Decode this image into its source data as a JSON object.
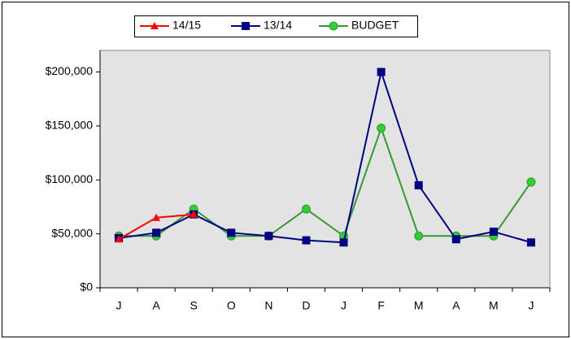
{
  "chart_data": {
    "type": "line",
    "categories": [
      "J",
      "A",
      "S",
      "O",
      "N",
      "D",
      "J",
      "F",
      "M",
      "A",
      "M",
      "J"
    ],
    "series": [
      {
        "name": "14/15",
        "color": "#ff0000",
        "marker": "triangle",
        "values": [
          45000,
          65000,
          68000,
          null,
          null,
          null,
          null,
          null,
          null,
          null,
          null,
          null
        ]
      },
      {
        "name": "13/14",
        "color": "#000080",
        "marker": "square",
        "values": [
          46000,
          51000,
          68000,
          51000,
          48000,
          44000,
          42000,
          200000,
          95000,
          45000,
          52000,
          42000
        ]
      },
      {
        "name": "BUDGET",
        "color": "#339933",
        "marker": "circle",
        "values": [
          48000,
          48000,
          73000,
          48000,
          48000,
          73000,
          48000,
          148000,
          48000,
          48000,
          48000,
          98000
        ]
      }
    ],
    "ylim": [
      0,
      220000
    ],
    "yticks": [
      {
        "value": 0,
        "label": "$0"
      },
      {
        "value": 50000,
        "label": "$50,000"
      },
      {
        "value": 100000,
        "label": "$100,000"
      },
      {
        "value": 150000,
        "label": "$150,000"
      },
      {
        "value": 200000,
        "label": "$200,000"
      }
    ],
    "legend": "top"
  }
}
